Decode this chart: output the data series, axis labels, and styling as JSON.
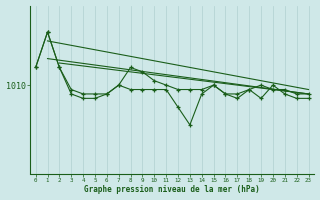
{
  "bg_color": "#cfe8e8",
  "grid_color": "#b0d0d0",
  "line_color": "#1a5e1a",
  "xlabel": "Graphe pression niveau de la mer (hPa)",
  "ytick_val": 1010,
  "ylim": [
    990,
    1028
  ],
  "xlim": [
    -0.5,
    23.5
  ],
  "hours": [
    0,
    1,
    2,
    3,
    4,
    5,
    6,
    7,
    8,
    9,
    10,
    11,
    12,
    13,
    14,
    15,
    16,
    17,
    18,
    19,
    20,
    21,
    22,
    23
  ],
  "series_jagged1": [
    1014,
    1022,
    1014,
    1008,
    1007,
    1007,
    1008,
    1010,
    1009,
    1009,
    1009,
    1009,
    1005,
    1001,
    1008,
    1010,
    1008,
    1007,
    1009,
    1007,
    1010,
    1008,
    1007,
    1007
  ],
  "series_jagged2": [
    1014,
    1022,
    1014,
    1009,
    1008,
    1008,
    1008,
    1010,
    1014,
    1013,
    1011,
    1010,
    1009,
    1009,
    1009,
    1010,
    1008,
    1008,
    1009,
    1010,
    1009,
    1009,
    1008,
    1008
  ],
  "trend1_x": [
    1,
    23
  ],
  "trend1_y": [
    1020,
    1009
  ],
  "trend2_x": [
    1,
    23
  ],
  "trend2_y": [
    1016,
    1008
  ],
  "trend3_x": [
    2,
    23
  ],
  "trend3_y": [
    1015,
    1008
  ]
}
